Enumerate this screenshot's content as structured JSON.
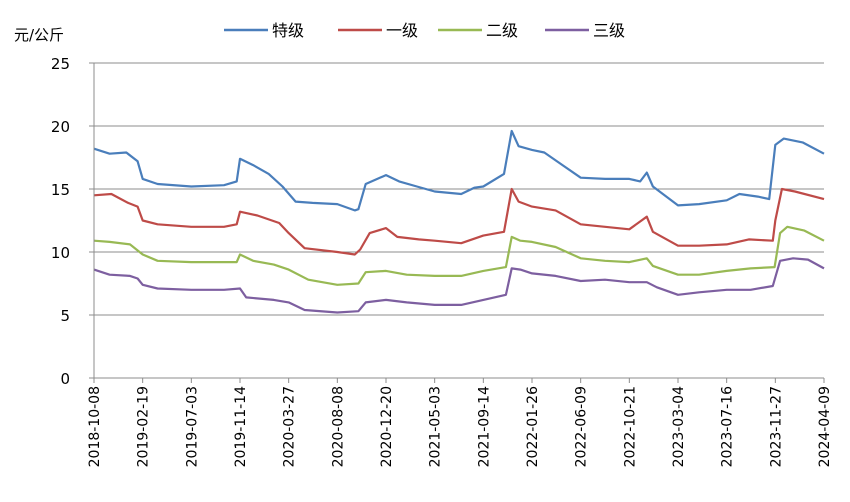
{
  "chart_data": {
    "type": "line",
    "ylabel": "元/公斤",
    "ylim": [
      0,
      25
    ],
    "yticks": [
      0,
      5,
      10,
      15,
      20,
      25
    ],
    "grid": "horizontal",
    "legend_position": "top",
    "x_start": "2018-10-08",
    "x_end": "2024-04-09",
    "xticks": [
      "2018-10-08",
      "2019-02-19",
      "2019-07-03",
      "2019-11-14",
      "2020-03-27",
      "2020-08-08",
      "2020-12-20",
      "2021-05-03",
      "2021-09-14",
      "2022-01-26",
      "2022-06-09",
      "2022-10-21",
      "2023-03-04",
      "2023-07-16",
      "2023-11-27",
      "2024-04-09"
    ],
    "series": [
      {
        "name": "特级",
        "color": "#4a7ebb",
        "points": [
          [
            "2018-10-08",
            18.2
          ],
          [
            "2018-11-20",
            17.8
          ],
          [
            "2019-01-05",
            17.9
          ],
          [
            "2019-02-05",
            17.2
          ],
          [
            "2019-02-19",
            15.8
          ],
          [
            "2019-04-01",
            15.4
          ],
          [
            "2019-07-03",
            15.2
          ],
          [
            "2019-10-01",
            15.3
          ],
          [
            "2019-11-05",
            15.6
          ],
          [
            "2019-11-14",
            17.4
          ],
          [
            "2019-12-20",
            16.9
          ],
          [
            "2020-02-01",
            16.2
          ],
          [
            "2020-03-10",
            15.2
          ],
          [
            "2020-04-15",
            14.0
          ],
          [
            "2020-06-01",
            13.9
          ],
          [
            "2020-08-08",
            13.8
          ],
          [
            "2020-09-25",
            13.3
          ],
          [
            "2020-10-05",
            13.4
          ],
          [
            "2020-10-25",
            15.4
          ],
          [
            "2020-12-20",
            16.1
          ],
          [
            "2021-01-25",
            15.6
          ],
          [
            "2021-03-15",
            15.2
          ],
          [
            "2021-05-03",
            14.8
          ],
          [
            "2021-07-15",
            14.6
          ],
          [
            "2021-08-20",
            15.1
          ],
          [
            "2021-09-14",
            15.2
          ],
          [
            "2021-11-10",
            16.2
          ],
          [
            "2021-12-01",
            19.6
          ],
          [
            "2021-12-20",
            18.4
          ],
          [
            "2022-01-26",
            18.1
          ],
          [
            "2022-03-01",
            17.9
          ],
          [
            "2022-04-20",
            16.9
          ],
          [
            "2022-06-09",
            15.9
          ],
          [
            "2022-08-15",
            15.8
          ],
          [
            "2022-10-21",
            15.8
          ],
          [
            "2022-11-20",
            15.6
          ],
          [
            "2022-12-08",
            16.3
          ],
          [
            "2022-12-25",
            15.2
          ],
          [
            "2023-03-04",
            13.7
          ],
          [
            "2023-05-01",
            13.8
          ],
          [
            "2023-07-16",
            14.1
          ],
          [
            "2023-08-20",
            14.6
          ],
          [
            "2023-10-10",
            14.4
          ],
          [
            "2023-11-10",
            14.2
          ],
          [
            "2023-11-27",
            18.5
          ],
          [
            "2023-12-20",
            19.0
          ],
          [
            "2024-02-10",
            18.7
          ],
          [
            "2024-04-09",
            17.8
          ]
        ]
      },
      {
        "name": "一级",
        "color": "#be4b48",
        "points": [
          [
            "2018-10-08",
            14.5
          ],
          [
            "2018-11-25",
            14.6
          ],
          [
            "2019-01-10",
            13.9
          ],
          [
            "2019-02-05",
            13.6
          ],
          [
            "2019-02-19",
            12.5
          ],
          [
            "2019-04-01",
            12.2
          ],
          [
            "2019-07-03",
            12.0
          ],
          [
            "2019-10-01",
            12.0
          ],
          [
            "2019-11-05",
            12.2
          ],
          [
            "2019-11-14",
            13.2
          ],
          [
            "2020-01-01",
            12.9
          ],
          [
            "2020-03-01",
            12.3
          ],
          [
            "2020-03-27",
            11.5
          ],
          [
            "2020-05-10",
            10.3
          ],
          [
            "2020-08-08",
            10.0
          ],
          [
            "2020-09-25",
            9.8
          ],
          [
            "2020-10-10",
            10.2
          ],
          [
            "2020-11-05",
            11.5
          ],
          [
            "2020-12-20",
            11.9
          ],
          [
            "2021-01-20",
            11.2
          ],
          [
            "2021-03-20",
            11.0
          ],
          [
            "2021-05-03",
            10.9
          ],
          [
            "2021-07-15",
            10.7
          ],
          [
            "2021-09-14",
            11.3
          ],
          [
            "2021-11-10",
            11.6
          ],
          [
            "2021-12-01",
            15.0
          ],
          [
            "2021-12-20",
            14.0
          ],
          [
            "2022-01-26",
            13.6
          ],
          [
            "2022-04-01",
            13.3
          ],
          [
            "2022-06-09",
            12.2
          ],
          [
            "2022-08-15",
            12.0
          ],
          [
            "2022-10-21",
            11.8
          ],
          [
            "2022-12-08",
            12.8
          ],
          [
            "2022-12-25",
            11.6
          ],
          [
            "2023-03-04",
            10.5
          ],
          [
            "2023-05-01",
            10.5
          ],
          [
            "2023-07-16",
            10.6
          ],
          [
            "2023-09-15",
            11.0
          ],
          [
            "2023-11-20",
            10.9
          ],
          [
            "2023-11-27",
            12.5
          ],
          [
            "2023-12-15",
            15.0
          ],
          [
            "2024-01-20",
            14.8
          ],
          [
            "2024-04-09",
            14.2
          ]
        ]
      },
      {
        "name": "二级",
        "color": "#98b954",
        "points": [
          [
            "2018-10-08",
            10.9
          ],
          [
            "2018-11-20",
            10.8
          ],
          [
            "2019-01-15",
            10.6
          ],
          [
            "2019-02-19",
            9.8
          ],
          [
            "2019-04-01",
            9.3
          ],
          [
            "2019-07-03",
            9.2
          ],
          [
            "2019-10-01",
            9.2
          ],
          [
            "2019-11-05",
            9.2
          ],
          [
            "2019-11-14",
            9.8
          ],
          [
            "2019-12-20",
            9.3
          ],
          [
            "2020-02-15",
            9.0
          ],
          [
            "2020-03-27",
            8.6
          ],
          [
            "2020-05-20",
            7.8
          ],
          [
            "2020-08-08",
            7.4
          ],
          [
            "2020-10-05",
            7.5
          ],
          [
            "2020-10-25",
            8.4
          ],
          [
            "2020-12-20",
            8.5
          ],
          [
            "2021-02-15",
            8.2
          ],
          [
            "2021-05-03",
            8.1
          ],
          [
            "2021-07-15",
            8.1
          ],
          [
            "2021-09-14",
            8.5
          ],
          [
            "2021-11-15",
            8.8
          ],
          [
            "2021-12-01",
            11.2
          ],
          [
            "2021-12-25",
            10.9
          ],
          [
            "2022-01-26",
            10.8
          ],
          [
            "2022-04-01",
            10.4
          ],
          [
            "2022-06-09",
            9.5
          ],
          [
            "2022-08-15",
            9.3
          ],
          [
            "2022-10-21",
            9.2
          ],
          [
            "2022-12-08",
            9.5
          ],
          [
            "2022-12-25",
            8.9
          ],
          [
            "2023-03-04",
            8.2
          ],
          [
            "2023-05-01",
            8.2
          ],
          [
            "2023-07-16",
            8.5
          ],
          [
            "2023-09-20",
            8.7
          ],
          [
            "2023-11-25",
            8.8
          ],
          [
            "2023-12-10",
            11.5
          ],
          [
            "2023-12-30",
            12.0
          ],
          [
            "2024-02-15",
            11.7
          ],
          [
            "2024-04-09",
            10.9
          ]
        ]
      },
      {
        "name": "三级",
        "color": "#7d5fa0",
        "points": [
          [
            "2018-10-08",
            8.6
          ],
          [
            "2018-11-20",
            8.2
          ],
          [
            "2019-01-15",
            8.1
          ],
          [
            "2019-02-05",
            7.9
          ],
          [
            "2019-02-19",
            7.4
          ],
          [
            "2019-04-01",
            7.1
          ],
          [
            "2019-07-03",
            7.0
          ],
          [
            "2019-10-01",
            7.0
          ],
          [
            "2019-11-14",
            7.1
          ],
          [
            "2019-12-01",
            6.4
          ],
          [
            "2020-02-15",
            6.2
          ],
          [
            "2020-03-27",
            6.0
          ],
          [
            "2020-05-10",
            5.4
          ],
          [
            "2020-08-08",
            5.2
          ],
          [
            "2020-10-05",
            5.3
          ],
          [
            "2020-10-25",
            6.0
          ],
          [
            "2020-12-20",
            6.2
          ],
          [
            "2021-02-15",
            6.0
          ],
          [
            "2021-05-03",
            5.8
          ],
          [
            "2021-07-15",
            5.8
          ],
          [
            "2021-09-14",
            6.2
          ],
          [
            "2021-11-15",
            6.6
          ],
          [
            "2021-12-01",
            8.7
          ],
          [
            "2021-12-25",
            8.6
          ],
          [
            "2022-01-26",
            8.3
          ],
          [
            "2022-04-01",
            8.1
          ],
          [
            "2022-06-09",
            7.7
          ],
          [
            "2022-08-15",
            7.8
          ],
          [
            "2022-10-21",
            7.6
          ],
          [
            "2022-12-08",
            7.6
          ],
          [
            "2023-01-05",
            7.2
          ],
          [
            "2023-03-04",
            6.6
          ],
          [
            "2023-05-01",
            6.8
          ],
          [
            "2023-07-16",
            7.0
          ],
          [
            "2023-09-20",
            7.0
          ],
          [
            "2023-11-20",
            7.3
          ],
          [
            "2023-12-10",
            9.3
          ],
          [
            "2024-01-15",
            9.5
          ],
          [
            "2024-02-25",
            9.4
          ],
          [
            "2024-04-09",
            8.7
          ]
        ]
      }
    ]
  }
}
